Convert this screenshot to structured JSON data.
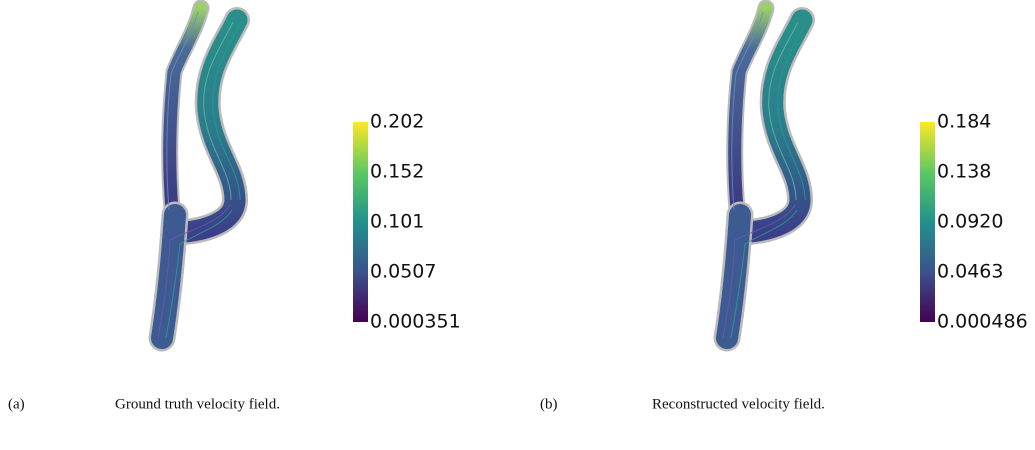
{
  "panels": [
    {
      "colorbar": {
        "ticks": [
          "0.202",
          "0.152",
          "0.101",
          "0.0507",
          "0.000351"
        ]
      },
      "caption": {
        "label": "(a)",
        "text": "Ground truth velocity field."
      }
    },
    {
      "colorbar": {
        "ticks": [
          "0.184",
          "0.138",
          "0.0920",
          "0.0463",
          "0.000486"
        ]
      },
      "caption": {
        "label": "(b)",
        "text": "Reconstructed velocity field."
      }
    }
  ]
}
